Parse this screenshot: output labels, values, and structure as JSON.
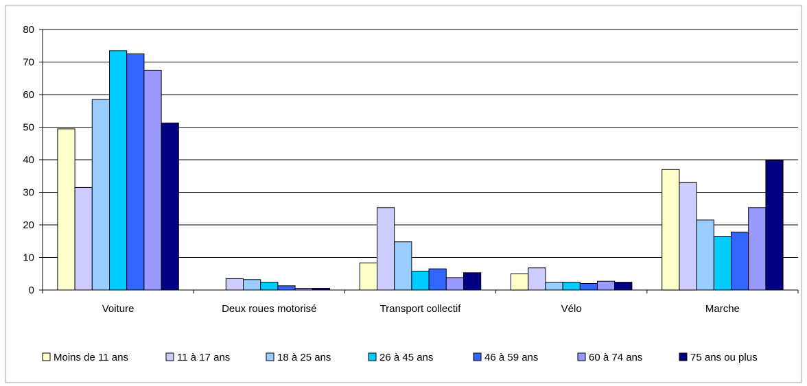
{
  "chart_data": {
    "type": "bar",
    "title": "",
    "xlabel": "",
    "ylabel": "",
    "ylim": [
      0,
      80
    ],
    "yticks": [
      0,
      10,
      20,
      30,
      40,
      50,
      60,
      70,
      80
    ],
    "grid": true,
    "legend_position": "bottom",
    "categories": [
      "Voiture",
      "Deux roues motorisé",
      "Transport collectif",
      "Vélo",
      "Marche"
    ],
    "series": [
      {
        "name": "Moins de 11 ans",
        "color": "#ffffcc",
        "values": [
          49.5,
          0,
          8.3,
          5.0,
          37.0
        ]
      },
      {
        "name": "11 à 17 ans",
        "color": "#ccccff",
        "values": [
          31.5,
          3.5,
          25.3,
          6.8,
          33.0
        ]
      },
      {
        "name": "18 à 25 ans",
        "color": "#99ccff",
        "values": [
          58.5,
          3.2,
          14.8,
          2.4,
          21.5
        ]
      },
      {
        "name": "26 à 45 ans",
        "color": "#00ccff",
        "values": [
          73.5,
          2.4,
          5.8,
          2.4,
          16.5
        ]
      },
      {
        "name": "46 à 59 ans",
        "color": "#3366ff",
        "values": [
          72.5,
          1.3,
          6.5,
          2.0,
          17.8
        ]
      },
      {
        "name": "60 à 74 ans",
        "color": "#9999ff",
        "values": [
          67.5,
          0.5,
          3.8,
          2.7,
          25.3
        ]
      },
      {
        "name": "75 ans ou plus",
        "color": "#000080",
        "values": [
          51.3,
          0.5,
          5.3,
          2.4,
          39.8
        ]
      }
    ]
  }
}
